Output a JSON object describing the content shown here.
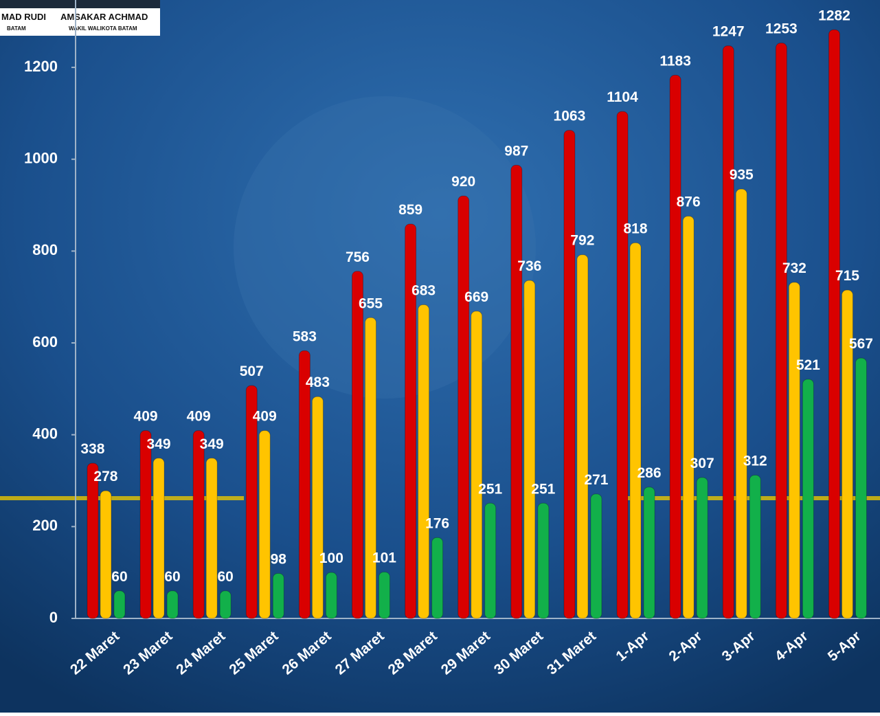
{
  "header": {
    "name_1": "MAD RUDI",
    "role_1": "BATAM",
    "name_2": "AMSAKAR ACHMAD",
    "role_2": "WAKIL WALIKOTA BATAM"
  },
  "chart_data": {
    "type": "bar",
    "categories": [
      "22 Maret",
      "23 Maret",
      "24 Maret",
      "25 Maret",
      "26 Maret",
      "27 Maret",
      "28 Maret",
      "29 Maret",
      "30 Maret",
      "31 Maret",
      "1-Apr",
      "2-Apr",
      "3-Apr",
      "4-Apr",
      "5-Apr"
    ],
    "series": [
      {
        "color": "#d90000",
        "values": [
          338,
          409,
          409,
          507,
          583,
          756,
          859,
          920,
          987,
          1063,
          1104,
          1183,
          1247,
          1253,
          1282
        ]
      },
      {
        "color": "#ffc400",
        "values": [
          278,
          349,
          349,
          409,
          483,
          655,
          683,
          669,
          736,
          792,
          818,
          876,
          935,
          732,
          715
        ]
      },
      {
        "color": "#12b04a",
        "values": [
          60,
          60,
          60,
          98,
          100,
          101,
          176,
          251,
          251,
          271,
          286,
          307,
          312,
          521,
          567
        ]
      }
    ],
    "ylim": [
      0,
      1340
    ],
    "yticks": [
      0,
      200,
      400,
      600,
      800,
      1000,
      1200
    ],
    "grid": false
  }
}
